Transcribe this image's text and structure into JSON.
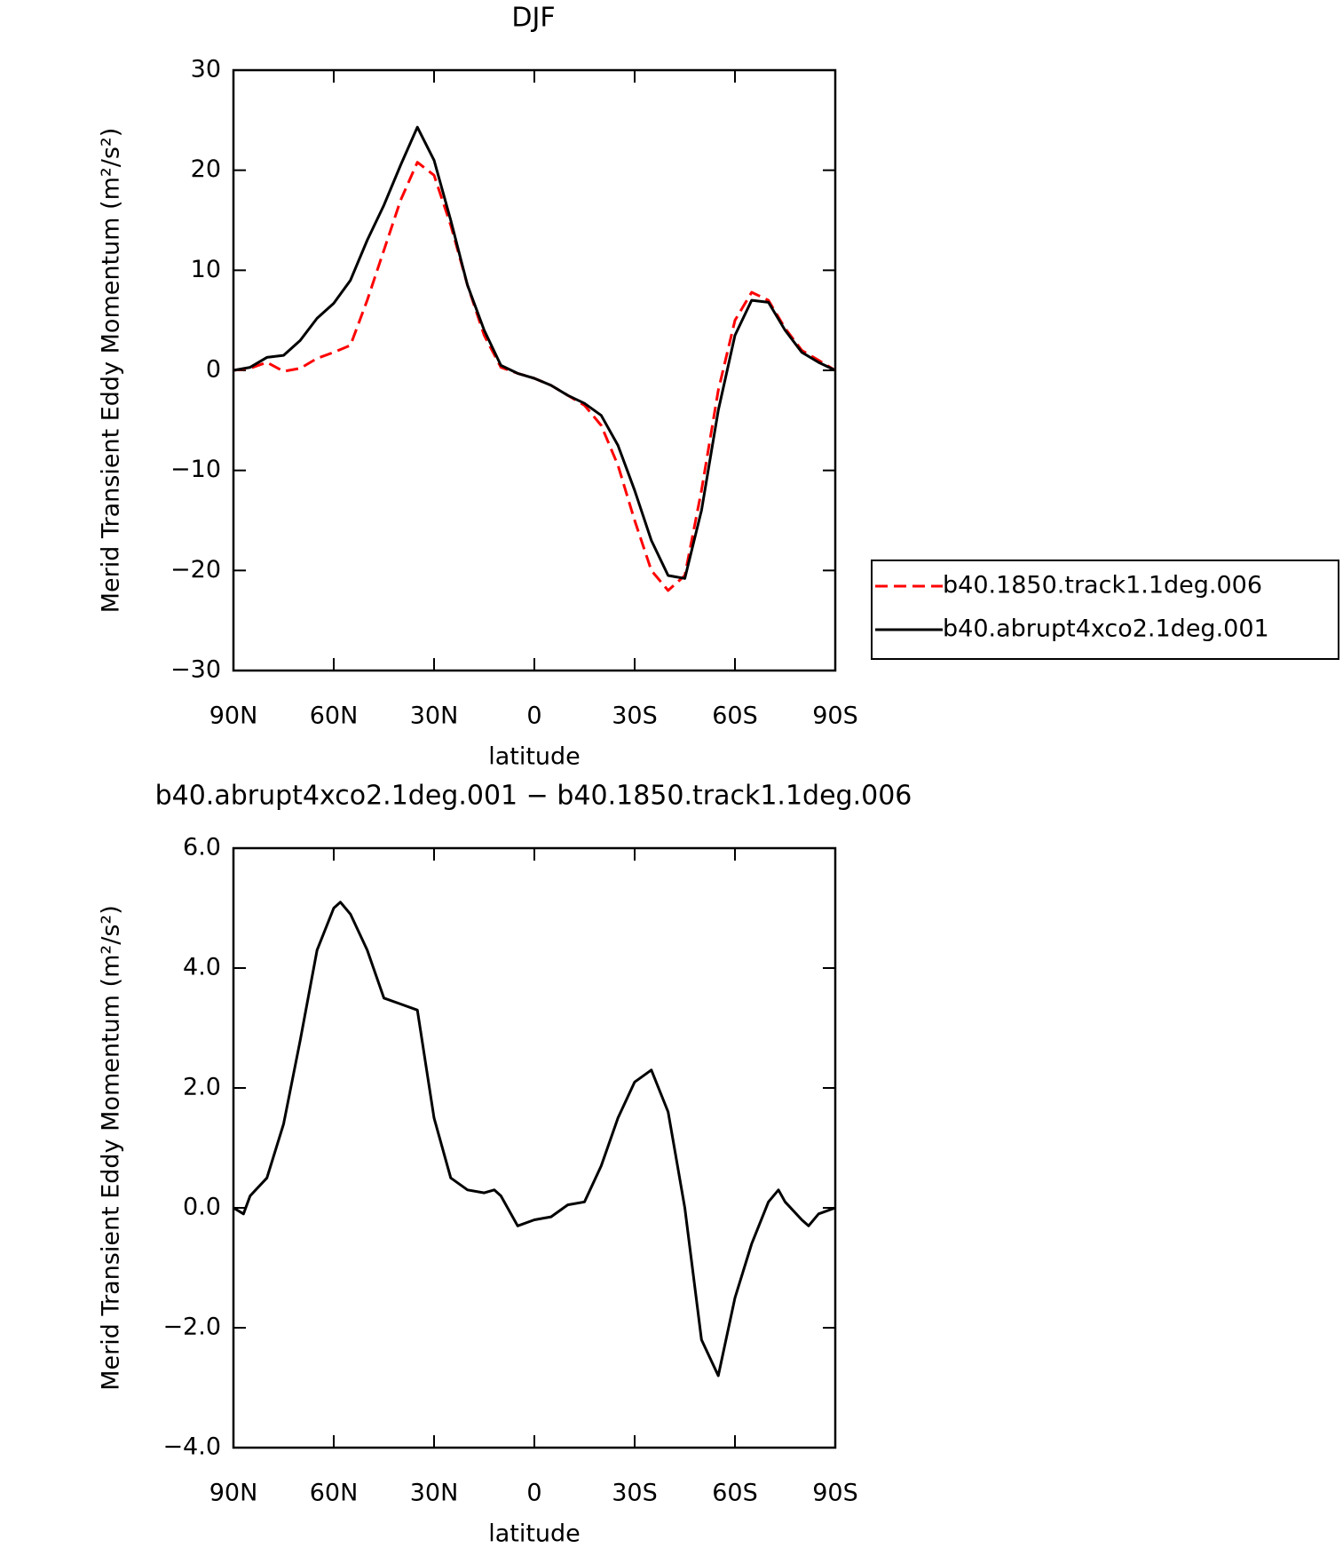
{
  "chart_data": [
    {
      "type": "line",
      "title": "DJF",
      "xlabel": "latitude",
      "ylabel": "Merid Transient Eddy Momentum (m²/s²)",
      "x": [
        90,
        85,
        80,
        75,
        70,
        65,
        60,
        55,
        50,
        45,
        40,
        35,
        30,
        25,
        20,
        15,
        10,
        5,
        0,
        -5,
        -10,
        -15,
        -20,
        -25,
        -30,
        -35,
        -40,
        -45,
        -50,
        -55,
        -60,
        -65,
        -70,
        -75,
        -80,
        -85,
        -90
      ],
      "series": [
        {
          "name": "b40.1850.track1.1deg.006",
          "color": "#ff0000",
          "linestyle": "dashed",
          "values": [
            0,
            0.2,
            0.8,
            -0.1,
            0.2,
            1.2,
            1.8,
            2.5,
            7,
            12,
            17,
            20.8,
            19.5,
            14.5,
            8.5,
            3.5,
            0.3,
            -0.3,
            -0.8,
            -1.5,
            -2.5,
            -3.5,
            -5.5,
            -9.5,
            -15,
            -20,
            -22,
            -20.5,
            -12,
            -2,
            5,
            7.8,
            7,
            4.2,
            2,
            1,
            0
          ]
        },
        {
          "name": "b40.abrupt4xco2.1deg.001",
          "color": "#000000",
          "linestyle": "solid",
          "values": [
            0,
            0.3,
            1.3,
            1.5,
            3,
            5.2,
            6.7,
            9,
            13,
            16.5,
            20.5,
            24.3,
            21,
            15,
            8.5,
            4,
            0.5,
            -0.3,
            -0.8,
            -1.5,
            -2.5,
            -3.3,
            -4.5,
            -7.5,
            -12,
            -17,
            -20.5,
            -20.8,
            -14,
            -4,
            3.5,
            7,
            6.8,
            4,
            1.8,
            0.8,
            0
          ]
        }
      ],
      "xlim": [
        90,
        -90
      ],
      "xticks": [
        {
          "value": 90,
          "label": "90N"
        },
        {
          "value": 60,
          "label": "60N"
        },
        {
          "value": 30,
          "label": "30N"
        },
        0,
        {
          "value": -30,
          "label": "30S"
        },
        {
          "value": -60,
          "label": "60S"
        },
        {
          "value": -90,
          "label": "90S"
        }
      ],
      "ylim": [
        -30,
        30
      ],
      "yticks": [
        {
          "value": -30,
          "label": "−30"
        },
        {
          "value": -20,
          "label": "−20"
        },
        {
          "value": -10,
          "label": "−10"
        },
        0,
        10,
        20,
        30
      ],
      "legend": "outside-right"
    },
    {
      "type": "line",
      "title": "b40.abrupt4xco2.1deg.001 − b40.1850.track1.1deg.006",
      "xlabel": "latitude",
      "ylabel": "Merid Transient Eddy Momentum (m²/s²)",
      "x": [
        90,
        87,
        85,
        80,
        75,
        70,
        65,
        60,
        58,
        55,
        50,
        45,
        40,
        35,
        30,
        25,
        20,
        15,
        12,
        10,
        5,
        0,
        -5,
        -10,
        -15,
        -20,
        -25,
        -30,
        -35,
        -40,
        -45,
        -50,
        -55,
        -60,
        -65,
        -70,
        -73,
        -75,
        -80,
        -82,
        -85,
        -90
      ],
      "series": [
        {
          "color": "#000000",
          "linestyle": "solid",
          "values": [
            0,
            -0.1,
            0.2,
            0.5,
            1.4,
            2.8,
            4.3,
            5,
            5.1,
            4.9,
            4.3,
            3.5,
            3.4,
            3.3,
            1.5,
            0.5,
            0.3,
            0.25,
            0.3,
            0.2,
            -0.3,
            -0.2,
            -0.15,
            0.05,
            0.1,
            0.7,
            1.5,
            2.1,
            2.3,
            1.6,
            0,
            -2.2,
            -2.8,
            -1.5,
            -0.6,
            0.1,
            0.3,
            0.1,
            -0.2,
            -0.3,
            -0.1,
            0
          ]
        }
      ],
      "xlim": [
        90,
        -90
      ],
      "xticks": [
        {
          "value": 90,
          "label": "90N"
        },
        {
          "value": 60,
          "label": "60N"
        },
        {
          "value": 30,
          "label": "30N"
        },
        0,
        {
          "value": -30,
          "label": "30S"
        },
        {
          "value": -60,
          "label": "60S"
        },
        {
          "value": -90,
          "label": "90S"
        }
      ],
      "ylim": [
        -4,
        6
      ],
      "yticks": [
        {
          "value": -4,
          "label": "−4.0"
        },
        {
          "value": -2,
          "label": "−2.0"
        },
        {
          "value": 0,
          "label": "0.0"
        },
        {
          "value": 2,
          "label": "2.0"
        },
        {
          "value": 4,
          "label": "4.0"
        },
        {
          "value": 6,
          "label": "6.0"
        }
      ]
    }
  ]
}
